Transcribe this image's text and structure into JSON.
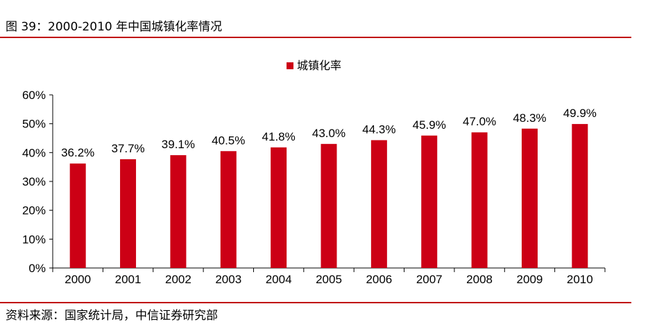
{
  "figure": {
    "caption": "图 39：2000-2010 年中国城镇化率情况",
    "source": "资料来源：国家统计局，中信证券研究部"
  },
  "colors": {
    "bar": "#cc0015",
    "rule": "#c00000",
    "axis": "#000000"
  },
  "chart_data": {
    "type": "bar",
    "title": "",
    "xlabel": "",
    "ylabel": "",
    "categories": [
      "2000",
      "2001",
      "2002",
      "2003",
      "2004",
      "2005",
      "2006",
      "2007",
      "2008",
      "2009",
      "2010"
    ],
    "series": [
      {
        "name": "城镇化率",
        "values": [
          36.2,
          37.7,
          39.1,
          40.5,
          41.8,
          43.0,
          44.3,
          45.9,
          47.0,
          48.3,
          49.9
        ],
        "labels": [
          "36.2%",
          "37.7%",
          "39.1%",
          "40.5%",
          "41.8%",
          "43.0%",
          "44.3%",
          "45.9%",
          "47.0%",
          "48.3%",
          "49.9%"
        ]
      }
    ],
    "ylim": [
      0,
      60
    ],
    "yticks": [
      0,
      10,
      20,
      30,
      40,
      50,
      60
    ],
    "ytick_labels": [
      "0%",
      "10%",
      "20%",
      "30%",
      "40%",
      "50%",
      "60%"
    ],
    "grid": false,
    "legend_position": "top-center"
  }
}
